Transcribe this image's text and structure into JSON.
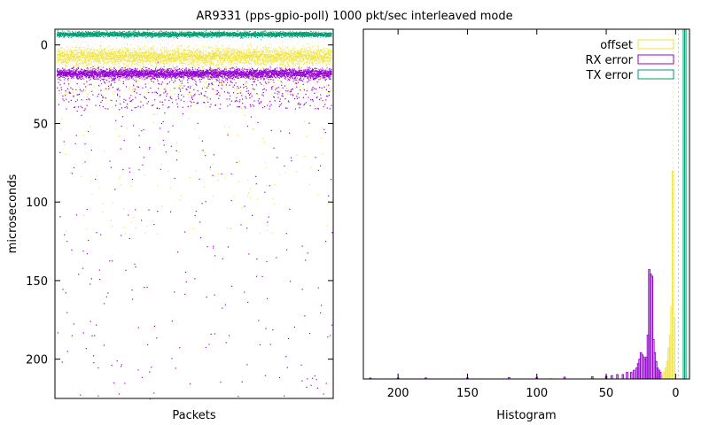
{
  "title": "AR9331 (pps-gpio-poll) 1000 pkt/sec interleaved mode",
  "colors": {
    "offset": "#f0e442",
    "rx": "#9400d3",
    "tx": "#009e73",
    "axis": "#000000"
  },
  "chart_data": [
    {
      "type": "scatter",
      "xlabel": "Packets",
      "ylabel": "microseconds",
      "ylim": [
        -10,
        225
      ],
      "y_inverted": true,
      "yticks": [
        0,
        50,
        100,
        150,
        200
      ],
      "x_ticks": [],
      "grid": false,
      "series": [
        {
          "name": "offset",
          "color": "#f0e442",
          "band_center": 7,
          "band_spread": 4.5,
          "tail_max": 120,
          "density": "dense band 3-13, sparse tail to ~120"
        },
        {
          "name": "RX error",
          "color": "#9400d3",
          "band_center": 18,
          "band_spread": 2.5,
          "tail_max": 225,
          "density": "dense band 16-20, sparse tail to ~225"
        },
        {
          "name": "TX error",
          "color": "#009e73",
          "band_center": -7,
          "band_spread": 1.2,
          "tail_max": -5,
          "density": "tight band near -7"
        }
      ]
    },
    {
      "type": "histogram",
      "xlabel": "Histogram",
      "xlim": [
        225,
        -10
      ],
      "x_inverted": true,
      "xticks": [
        200,
        150,
        100,
        50,
        0
      ],
      "legend_position": "top-right",
      "grid": false,
      "series": [
        {
          "name": "offset",
          "color": "#f0e442",
          "bins": [
            [
              1,
              28
            ],
            [
              2,
              95
            ],
            [
              3,
              33
            ],
            [
              4,
              20
            ],
            [
              5,
              14
            ],
            [
              6,
              8
            ],
            [
              7,
              5
            ],
            [
              8,
              3
            ],
            [
              9,
              2
            ],
            [
              10,
              1
            ],
            [
              12,
              1
            ],
            [
              14,
              1
            ],
            [
              16,
              0.5
            ],
            [
              20,
              0.5
            ],
            [
              30,
              0.3
            ],
            [
              60,
              0.2
            ],
            [
              90,
              0.2
            ]
          ]
        },
        {
          "name": "RX error",
          "color": "#9400d3",
          "bins": [
            [
              11,
              3
            ],
            [
              12,
              4
            ],
            [
              13,
              5
            ],
            [
              14,
              8
            ],
            [
              15,
              12
            ],
            [
              16,
              18
            ],
            [
              17,
              47
            ],
            [
              18,
              48
            ],
            [
              19,
              50
            ],
            [
              20,
              20
            ],
            [
              21,
              10
            ],
            [
              22,
              9
            ],
            [
              23,
              10
            ],
            [
              24,
              11
            ],
            [
              25,
              12
            ],
            [
              26,
              9
            ],
            [
              27,
              7
            ],
            [
              28,
              5
            ],
            [
              30,
              4
            ],
            [
              32,
              3
            ],
            [
              35,
              3
            ],
            [
              38,
              2
            ],
            [
              42,
              2
            ],
            [
              46,
              1.5
            ],
            [
              50,
              1.2
            ],
            [
              60,
              1
            ],
            [
              80,
              0.8
            ],
            [
              100,
              0.7
            ],
            [
              120,
              0.6
            ],
            [
              150,
              0.5
            ],
            [
              180,
              0.5
            ],
            [
              200,
              0.4
            ],
            [
              220,
              0.4
            ]
          ]
        },
        {
          "name": "TX error",
          "color": "#009e73",
          "bins": [
            [
              -6,
              160
            ],
            [
              -7,
              160
            ]
          ]
        }
      ]
    }
  ]
}
